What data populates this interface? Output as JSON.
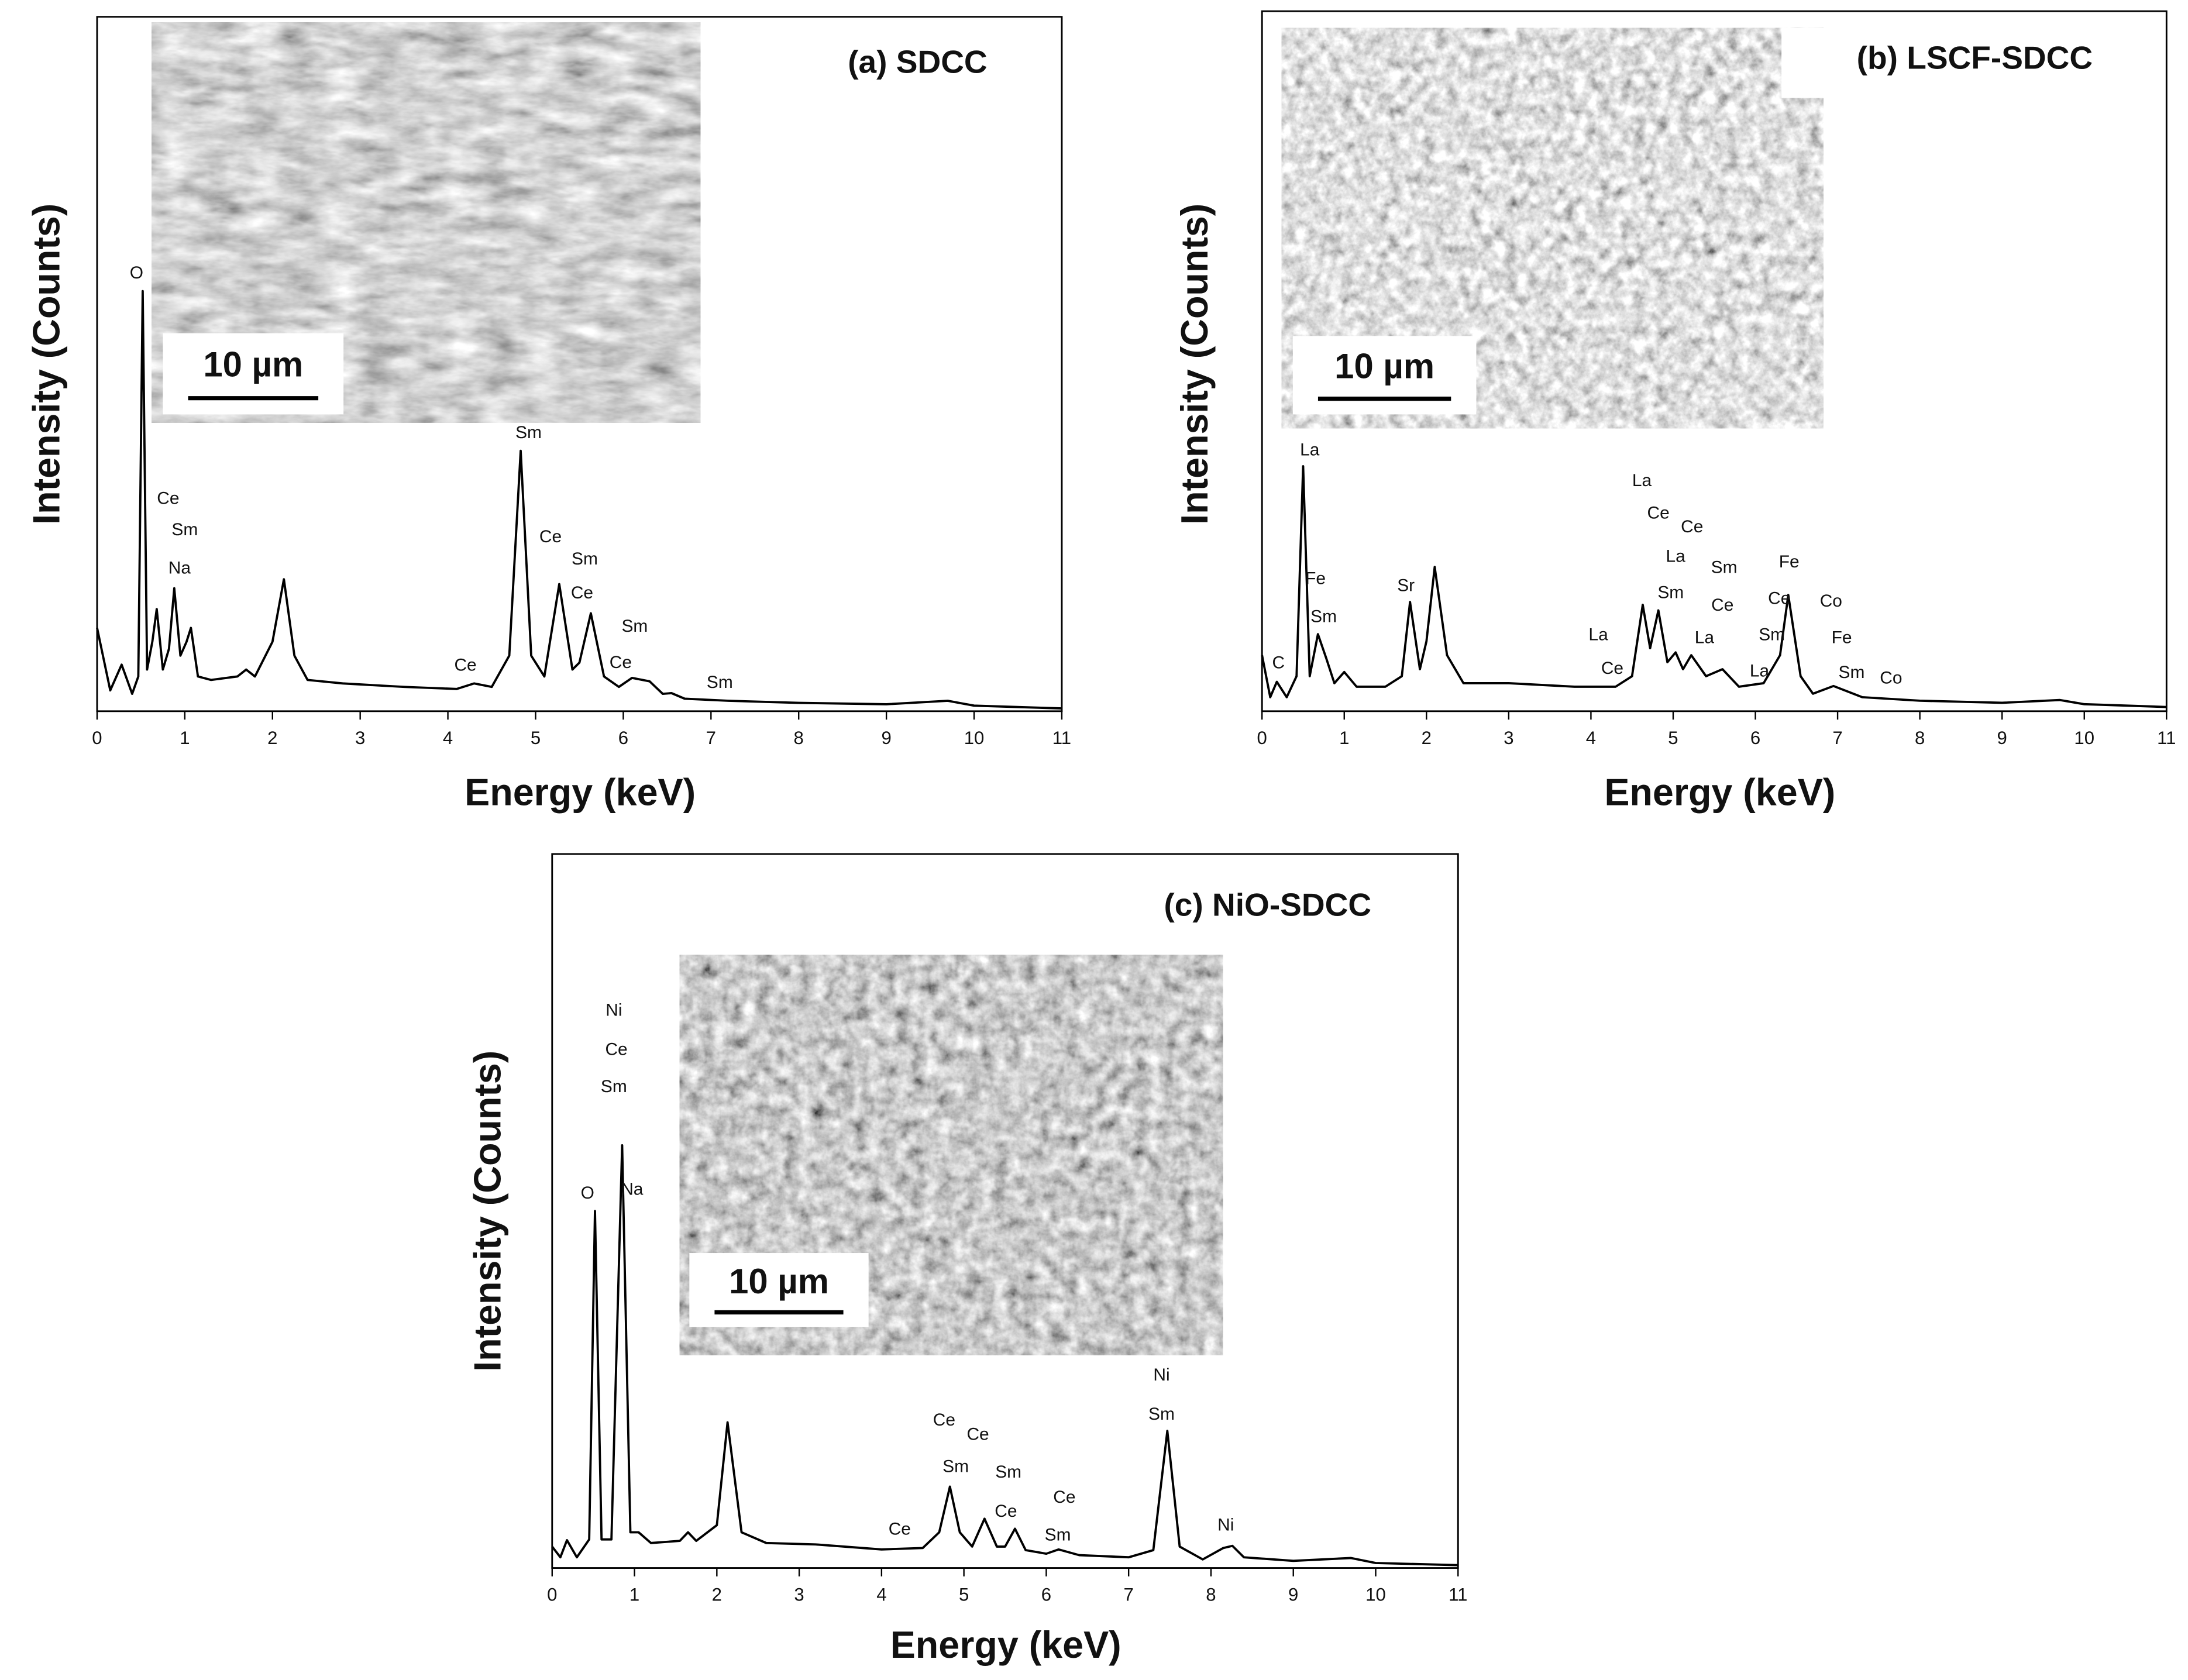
{
  "chart_data": [
    {
      "type": "line",
      "title": "(a) SDCC",
      "x_label": "Energy (keV)",
      "y_label": "Intensity (Counts)",
      "inset_scale_label": "10 µm",
      "xlim": [
        0,
        11
      ],
      "xticks": [
        0,
        1,
        2,
        3,
        4,
        5,
        6,
        7,
        8,
        9,
        10,
        11
      ],
      "ylim": [
        0,
        100
      ],
      "color": "#000000",
      "x": [
        0,
        0.15,
        0.28,
        0.4,
        0.47,
        0.52,
        0.57,
        0.63,
        0.68,
        0.75,
        0.82,
        0.88,
        0.95,
        1.02,
        1.07,
        1.15,
        1.3,
        1.6,
        1.7,
        1.8,
        2.0,
        2.13,
        2.25,
        2.4,
        2.8,
        3.5,
        4.1,
        4.3,
        4.5,
        4.7,
        4.83,
        4.95,
        5.1,
        5.27,
        5.42,
        5.5,
        5.63,
        5.78,
        5.95,
        6.1,
        6.3,
        6.45,
        6.55,
        6.7,
        7.2,
        8,
        9,
        9.7,
        10,
        11
      ],
      "values": [
        12,
        3,
        6.7,
        2.5,
        5,
        60.5,
        6,
        10,
        14.7,
        6,
        9,
        17.7,
        8,
        10,
        12,
        5,
        4.5,
        5,
        6,
        5,
        10,
        19,
        8,
        4.5,
        4,
        3.5,
        3.2,
        4,
        3.5,
        8,
        37.5,
        8,
        5,
        18.3,
        6,
        7,
        14.1,
        5,
        3.5,
        4.8,
        4.3,
        2.5,
        2.6,
        1.8,
        1.5,
        1.2,
        1,
        1.5,
        0.8,
        0.4
      ],
      "annotations": [
        {
          "text": "O",
          "x": 0.45,
          "y": 63
        },
        {
          "text": "Ce",
          "x": 0.81,
          "y": 30.5
        },
        {
          "text": "Sm",
          "x": 1.0,
          "y": 26
        },
        {
          "text": "Na",
          "x": 0.94,
          "y": 20.5
        },
        {
          "text": "Sm",
          "x": 4.92,
          "y": 40
        },
        {
          "text": "Ce",
          "x": 5.17,
          "y": 25
        },
        {
          "text": "Sm",
          "x": 5.56,
          "y": 21.8
        },
        {
          "text": "Ce",
          "x": 5.53,
          "y": 16.9
        },
        {
          "text": "Sm",
          "x": 6.13,
          "y": 12.1
        },
        {
          "text": "Ce",
          "x": 5.97,
          "y": 6.9
        },
        {
          "text": "Ce",
          "x": 4.2,
          "y": 6.5
        },
        {
          "text": "Sm",
          "x": 7.1,
          "y": 4
        }
      ]
    },
    {
      "type": "line",
      "title": "(b) LSCF-SDCC",
      "x_label": "Energy (keV)",
      "y_label": "Intensity (Counts)",
      "inset_scale_label": "10 µm",
      "xlim": [
        0,
        11
      ],
      "xticks": [
        0,
        1,
        2,
        3,
        4,
        5,
        6,
        7,
        8,
        9,
        10,
        11
      ],
      "ylim": [
        0,
        100
      ],
      "color": "#000000",
      "x": [
        0,
        0.1,
        0.18,
        0.3,
        0.42,
        0.5,
        0.58,
        0.68,
        0.78,
        0.88,
        1.0,
        1.15,
        1.5,
        1.7,
        1.8,
        1.92,
        2.0,
        2.1,
        2.25,
        2.45,
        3,
        3.8,
        4.3,
        4.5,
        4.63,
        4.72,
        4.82,
        4.93,
        5.03,
        5.12,
        5.22,
        5.4,
        5.6,
        5.8,
        6.1,
        6.3,
        6.4,
        6.55,
        6.7,
        6.95,
        7.3,
        8,
        9,
        9.7,
        10,
        11
      ],
      "values": [
        8,
        2,
        4.2,
        2,
        5,
        35,
        5,
        11,
        7.6,
        4,
        5.6,
        3.5,
        3.5,
        5,
        15.6,
        6,
        10,
        20.6,
        8,
        4,
        4,
        3.5,
        3.5,
        5,
        15.2,
        9,
        14.4,
        7,
        8.4,
        6,
        8,
        5,
        6,
        3.5,
        4,
        8,
        16.6,
        5,
        2.5,
        3.6,
        2,
        1.5,
        1.2,
        1.6,
        1,
        0.6
      ],
      "annotations": [
        {
          "text": "La",
          "x": 0.58,
          "y": 37.2
        },
        {
          "text": "Fe",
          "x": 0.65,
          "y": 18.8
        },
        {
          "text": "Sm",
          "x": 0.75,
          "y": 13.4
        },
        {
          "text": "C",
          "x": 0.2,
          "y": 6.8
        },
        {
          "text": "Sr",
          "x": 1.75,
          "y": 17.8
        },
        {
          "text": "La",
          "x": 4.62,
          "y": 32.8
        },
        {
          "text": "Ce",
          "x": 4.82,
          "y": 28.2
        },
        {
          "text": "Ce",
          "x": 5.23,
          "y": 26.2
        },
        {
          "text": "La",
          "x": 5.03,
          "y": 22
        },
        {
          "text": "Sm",
          "x": 5.62,
          "y": 20.4
        },
        {
          "text": "Sm",
          "x": 4.97,
          "y": 16.8
        },
        {
          "text": "Ce",
          "x": 5.6,
          "y": 15
        },
        {
          "text": "La",
          "x": 5.38,
          "y": 10.4
        },
        {
          "text": "Fe",
          "x": 6.41,
          "y": 21.2
        },
        {
          "text": "Ce",
          "x": 6.29,
          "y": 16
        },
        {
          "text": "Co",
          "x": 6.92,
          "y": 15.6
        },
        {
          "text": "Sm",
          "x": 6.2,
          "y": 10.8
        },
        {
          "text": "Fe",
          "x": 7.05,
          "y": 10.4
        },
        {
          "text": "La",
          "x": 4.09,
          "y": 10.8
        },
        {
          "text": "Ce",
          "x": 4.26,
          "y": 6
        },
        {
          "text": "La",
          "x": 6.05,
          "y": 5.6
        },
        {
          "text": "Sm",
          "x": 7.17,
          "y": 5.4
        },
        {
          "text": "Co",
          "x": 7.65,
          "y": 4.6
        }
      ]
    },
    {
      "type": "line",
      "title": "(c) NiO-SDCC",
      "x_label": "Energy (keV)",
      "y_label": "Intensity (Counts)",
      "inset_scale_label": "10 µm",
      "xlim": [
        0,
        11
      ],
      "xticks": [
        0,
        1,
        2,
        3,
        4,
        5,
        6,
        7,
        8,
        9,
        10,
        11
      ],
      "ylim": [
        0,
        100
      ],
      "color": "#000000",
      "x": [
        0,
        0.1,
        0.18,
        0.3,
        0.45,
        0.52,
        0.6,
        0.72,
        0.85,
        0.95,
        1.05,
        1.2,
        1.55,
        1.65,
        1.75,
        2.0,
        2.13,
        2.3,
        2.6,
        3.2,
        4,
        4.5,
        4.7,
        4.83,
        4.95,
        5.1,
        5.25,
        5.4,
        5.5,
        5.62,
        5.75,
        6.0,
        6.15,
        6.4,
        7.0,
        7.3,
        7.47,
        7.62,
        7.9,
        8.15,
        8.26,
        8.4,
        9,
        9.7,
        10,
        11
      ],
      "values": [
        3,
        1.5,
        3.9,
        1.5,
        4,
        50,
        4,
        4,
        59.2,
        5,
        5,
        3.5,
        3.8,
        5,
        3.8,
        6,
        20.4,
        5,
        3.5,
        3.3,
        2.6,
        2.8,
        5,
        11.4,
        5,
        3,
        6.9,
        3,
        3,
        5.5,
        2.5,
        2,
        2.6,
        1.8,
        1.5,
        2.5,
        19.2,
        3,
        1.2,
        2.8,
        3.1,
        1.5,
        1,
        1.4,
        0.7,
        0.4
      ],
      "annotations": [
        {
          "text": "Ni",
          "x": 0.75,
          "y": 78
        },
        {
          "text": "Ce",
          "x": 0.78,
          "y": 72.5
        },
        {
          "text": "Sm",
          "x": 0.75,
          "y": 67.3
        },
        {
          "text": "O",
          "x": 0.43,
          "y": 52.4
        },
        {
          "text": "Na",
          "x": 0.97,
          "y": 52.9
        },
        {
          "text": "Ce",
          "x": 4.76,
          "y": 20.6
        },
        {
          "text": "Ce",
          "x": 5.17,
          "y": 18.6
        },
        {
          "text": "Sm",
          "x": 4.9,
          "y": 14.1
        },
        {
          "text": "Sm",
          "x": 5.54,
          "y": 13.3
        },
        {
          "text": "Ce",
          "x": 5.51,
          "y": 7.8
        },
        {
          "text": "Ce",
          "x": 6.22,
          "y": 9.8
        },
        {
          "text": "Sm",
          "x": 6.14,
          "y": 4.5
        },
        {
          "text": "Ce",
          "x": 4.22,
          "y": 5.3
        },
        {
          "text": "Ni",
          "x": 7.4,
          "y": 26.9
        },
        {
          "text": "Sm",
          "x": 7.4,
          "y": 21.4
        },
        {
          "text": "Ni",
          "x": 8.18,
          "y": 5.9
        }
      ]
    }
  ]
}
